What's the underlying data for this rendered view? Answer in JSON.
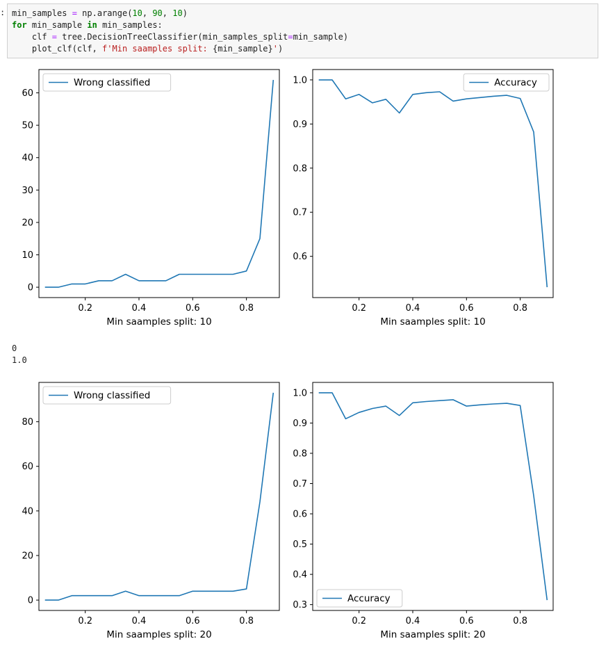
{
  "cell": {
    "prompt": ":",
    "code": {
      "l1_var": "min_samples",
      "l1_eq": " = ",
      "l1_call": "np.arange(",
      "l1_a": "10",
      "l1_sep1": ", ",
      "l1_b": "90",
      "l1_sep2": ", ",
      "l1_c": "10",
      "l1_close": ")",
      "l2_for": "for",
      "l2_var": " min_sample ",
      "l2_in": "in",
      "l2_rest": " min_samples:",
      "l3_a": "    clf ",
      "l3_eq": "=",
      "l3_b": " tree.DecisionTreeClassifier(min_samples_split",
      "l3_eq2": "=",
      "l3_c": "min_sample)",
      "l4_a": "    plot_clf(clf, ",
      "l4_str": "f'Min saamples split: ",
      "l4_expr": "{min_sample}",
      "l4_str2": "'",
      "l4_close": ")"
    }
  },
  "output_text": [
    "0",
    "1.0"
  ],
  "colors": {
    "line": "#1f77b4",
    "axis": "#000000"
  },
  "chart_data": [
    {
      "type": "line",
      "xlabel": "Min saamples split: 10",
      "x_ticks": [
        "0.2",
        "0.4",
        "0.6",
        "0.8"
      ],
      "y_ticks": [
        "0",
        "10",
        "20",
        "30",
        "40",
        "50",
        "60"
      ],
      "legend": "top-left",
      "series": [
        {
          "name": "Wrong classified",
          "x": [
            0.05,
            0.1,
            0.15,
            0.2,
            0.25,
            0.3,
            0.35,
            0.4,
            0.45,
            0.5,
            0.55,
            0.6,
            0.65,
            0.7,
            0.75,
            0.8,
            0.85,
            0.9
          ],
          "values": [
            0,
            0,
            1,
            1,
            2,
            2,
            4,
            2,
            2,
            2,
            4,
            4,
            4,
            4,
            4,
            5,
            15,
            64
          ]
        }
      ]
    },
    {
      "type": "line",
      "xlabel": "Min saamples split: 10",
      "x_ticks": [
        "0.2",
        "0.4",
        "0.6",
        "0.8"
      ],
      "y_ticks": [
        "0.6",
        "0.7",
        "0.8",
        "0.9",
        "1.0"
      ],
      "legend": "top-right",
      "series": [
        {
          "name": "Accuracy",
          "x": [
            0.05,
            0.1,
            0.15,
            0.2,
            0.25,
            0.3,
            0.35,
            0.4,
            0.45,
            0.5,
            0.55,
            0.6,
            0.65,
            0.7,
            0.75,
            0.8,
            0.85,
            0.9
          ],
          "values": [
            1.0,
            1.0,
            0.957,
            0.967,
            0.948,
            0.956,
            0.925,
            0.967,
            0.971,
            0.973,
            0.952,
            0.957,
            0.96,
            0.963,
            0.965,
            0.958,
            0.882,
            0.53
          ]
        }
      ]
    },
    {
      "type": "line",
      "xlabel": "Min saamples split: 20",
      "x_ticks": [
        "0.2",
        "0.4",
        "0.6",
        "0.8"
      ],
      "y_ticks": [
        "0",
        "20",
        "40",
        "60",
        "80"
      ],
      "legend": "top-left",
      "series": [
        {
          "name": "Wrong classified",
          "x": [
            0.05,
            0.1,
            0.15,
            0.2,
            0.25,
            0.3,
            0.35,
            0.4,
            0.45,
            0.5,
            0.55,
            0.6,
            0.65,
            0.7,
            0.75,
            0.8,
            0.85,
            0.9
          ],
          "values": [
            0,
            0,
            2,
            2,
            2,
            2,
            4,
            2,
            2,
            2,
            2,
            4,
            4,
            4,
            4,
            5,
            44,
            93
          ]
        }
      ]
    },
    {
      "type": "line",
      "xlabel": "Min saamples split: 20",
      "x_ticks": [
        "0.2",
        "0.4",
        "0.6",
        "0.8"
      ],
      "y_ticks": [
        "0.3",
        "0.4",
        "0.5",
        "0.6",
        "0.7",
        "0.8",
        "0.9",
        "1.0"
      ],
      "legend": "bottom-left",
      "series": [
        {
          "name": "Accuracy",
          "x": [
            0.05,
            0.1,
            0.15,
            0.2,
            0.25,
            0.3,
            0.35,
            0.4,
            0.45,
            0.5,
            0.55,
            0.6,
            0.65,
            0.7,
            0.75,
            0.8,
            0.85,
            0.9
          ],
          "values": [
            1.0,
            1.0,
            0.914,
            0.935,
            0.948,
            0.956,
            0.925,
            0.967,
            0.971,
            0.974,
            0.977,
            0.956,
            0.96,
            0.963,
            0.965,
            0.958,
            0.66,
            0.315
          ]
        }
      ]
    }
  ]
}
